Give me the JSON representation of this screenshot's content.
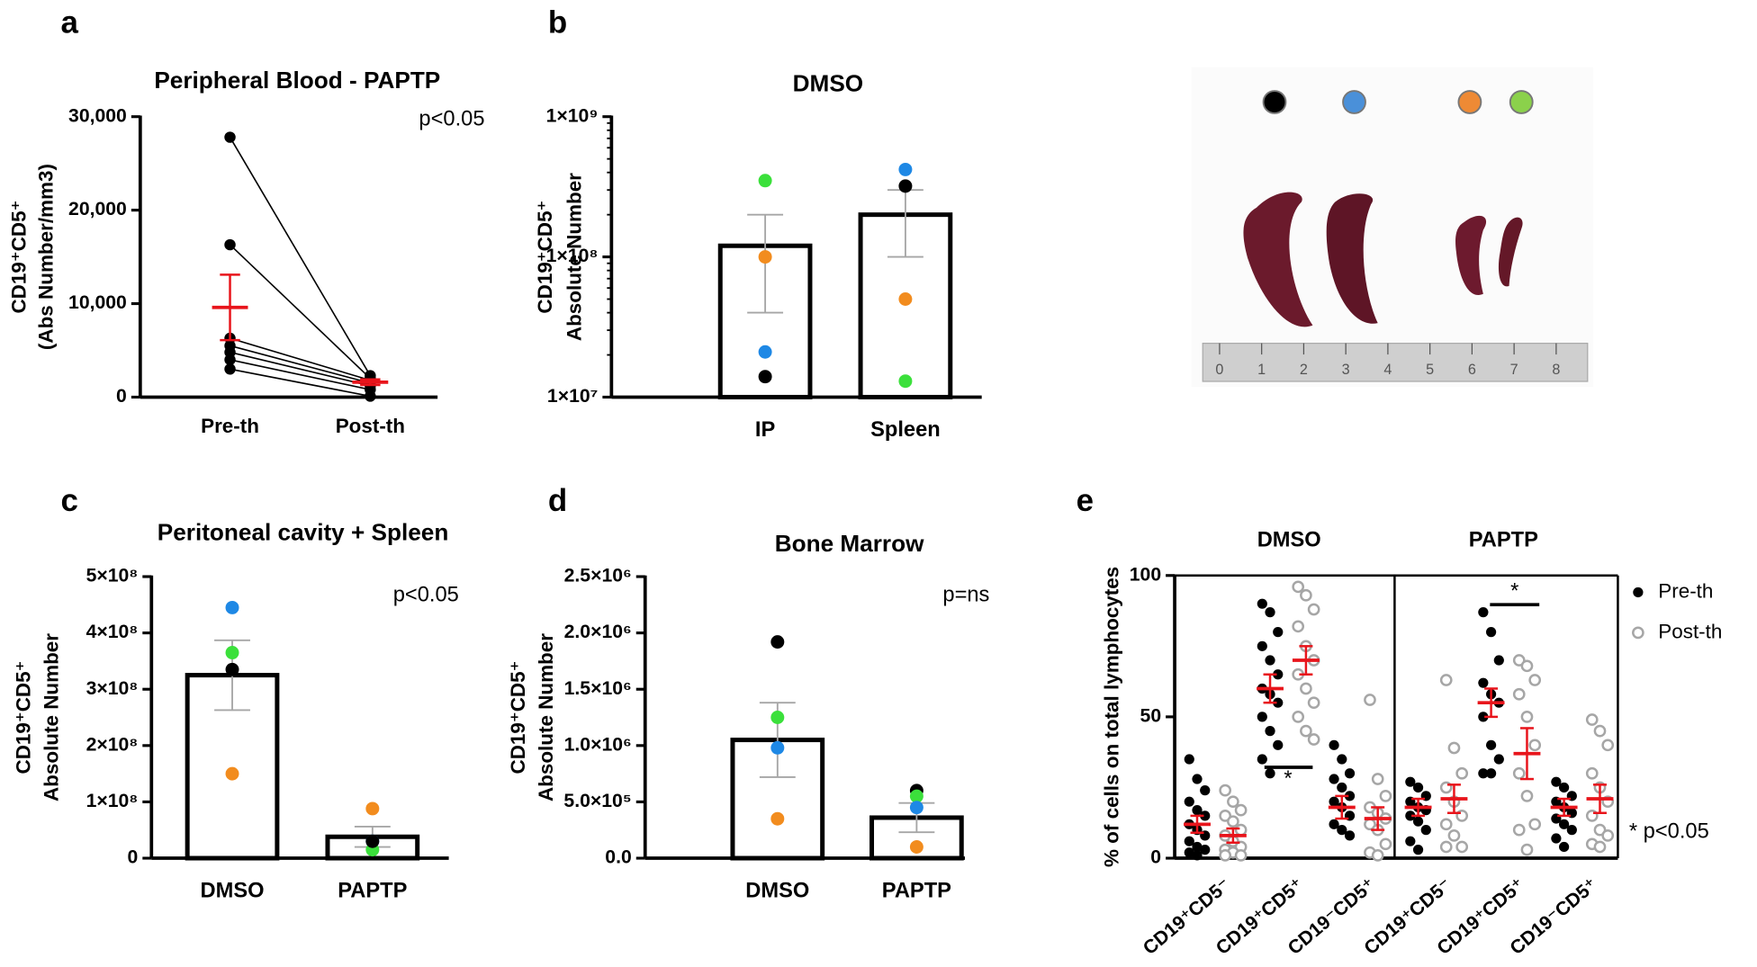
{
  "chart_data": [
    {
      "type": "paired",
      "letter": "a",
      "title": "Peripheral Blood - PAPTP",
      "ylabel": [
        "CD19⁺CD5⁺",
        "(Abs Number/mm3)"
      ],
      "categories": [
        "Pre-th",
        "Post-th"
      ],
      "pairs": [
        [
          27800,
          2300
        ],
        [
          16300,
          2000
        ],
        [
          6300,
          1800
        ],
        [
          5500,
          1500
        ],
        [
          4800,
          1200
        ],
        [
          4000,
          800
        ],
        [
          3000,
          100
        ]
      ],
      "color": "#000000",
      "means": [
        9600,
        1600
      ],
      "errors": [
        3500,
        300
      ],
      "mean_color": "#e8141b",
      "ylim": [
        0,
        30000
      ],
      "yticks": [
        0,
        {
          "value": 10000,
          "label": "10,000"
        },
        {
          "value": 20000,
          "label": "20,000"
        },
        {
          "value": 30000,
          "label": "30,000"
        }
      ],
      "annotations": [
        "p<0.05"
      ]
    },
    {
      "type": "bar",
      "letter": "b",
      "title": "DMSO",
      "ylabel": [
        "CD19⁺CD5⁺",
        "Absolute Number"
      ],
      "categories": [
        "IP",
        "Spleen"
      ],
      "values": [
        120000000,
        200000000
      ],
      "errors": [
        80000000,
        100000000
      ],
      "error_color": "#a6a6a6",
      "log": true,
      "points": [
        {
          "color": "#3be03b",
          "values": [
            350000000,
            13000000
          ]
        },
        {
          "color": "#f28c1e",
          "values": [
            100000000,
            50000000
          ]
        },
        {
          "color": "#1e88e5",
          "values": [
            21000000,
            420000000
          ]
        },
        {
          "color": "#000000",
          "values": [
            14000000,
            320000000
          ]
        }
      ],
      "ylim": [
        10000000,
        1000000000
      ],
      "yticks": [
        {
          "value": 10000000,
          "label": "1×10⁷"
        },
        {
          "value": 100000000,
          "label": "1×10⁸"
        },
        {
          "value": 1000000000,
          "label": "1×10⁹"
        }
      ],
      "annotations": []
    },
    {
      "type": "bar",
      "letter": "c",
      "title": "Peritoneal cavity + Spleen",
      "ylabel": [
        "CD19⁺CD5⁺",
        "Absolute Number"
      ],
      "categories": [
        "DMSO",
        "PAPTP"
      ],
      "values": [
        325000000,
        38000000
      ],
      "errors": [
        62000000,
        18000000
      ],
      "error_color": "#a6a6a6",
      "log": false,
      "points": [
        {
          "color": "#1e88e5",
          "values": [
            445000000,
            30000000
          ]
        },
        {
          "color": "#3be03b",
          "values": [
            365000000,
            15000000
          ]
        },
        {
          "color": "#000000",
          "values": [
            335000000,
            30000000
          ]
        },
        {
          "color": "#f28c1e",
          "values": [
            150000000,
            88000000
          ]
        }
      ],
      "point_colors_b": null,
      "ylim": [
        0,
        500000000
      ],
      "yticks": [
        0,
        {
          "value": 100000000,
          "label": "1×10⁸"
        },
        {
          "value": 200000000,
          "label": "2×10⁸"
        },
        {
          "value": 300000000,
          "label": "3×10⁸"
        },
        {
          "value": 400000000,
          "label": "4×10⁸"
        },
        {
          "value": 500000000,
          "label": "5×10⁸"
        }
      ],
      "annotations": [
        "p<0.05"
      ]
    },
    {
      "type": "bar",
      "letter": "d",
      "title": "Bone Marrow",
      "ylabel": [
        "CD19⁺CD5⁺",
        "Absolute Number"
      ],
      "categories": [
        "DMSO",
        "PAPTP"
      ],
      "values": [
        1050000,
        360000
      ],
      "errors": [
        330000,
        130000
      ],
      "error_color": "#a6a6a6",
      "log": false,
      "points": [
        {
          "color": "#000000",
          "values": [
            1920000,
            600000
          ]
        },
        {
          "color": "#3be03b",
          "values": [
            1250000,
            550000
          ]
        },
        {
          "color": "#1e88e5",
          "values": [
            980000,
            450000
          ]
        },
        {
          "color": "#f28c1e",
          "values": [
            350000,
            100000
          ]
        }
      ],
      "ylim": [
        0,
        2500000
      ],
      "yticks": [
        {
          "value": 0,
          "label": "0.0"
        },
        {
          "value": 500000,
          "label": "5.0×10⁵"
        },
        {
          "value": 1000000,
          "label": "1.0×10⁶"
        },
        {
          "value": 1500000,
          "label": "1.5×10⁶"
        },
        {
          "value": 2000000,
          "label": "2.0×10⁶"
        },
        {
          "value": 2500000,
          "label": "2.5×10⁶"
        }
      ],
      "annotations": [
        "p=ns"
      ]
    },
    {
      "type": "strip",
      "letter": "e",
      "title": null,
      "ylabel": [
        "% of cells on total lymphocytes"
      ],
      "groups": [
        "DMSO",
        "PAPTP"
      ],
      "categories": [
        "CD19⁺CD5⁻",
        "CD19⁺CD5⁺",
        "CD19⁻CD5⁺",
        "CD19⁺CD5⁻",
        "CD19⁺CD5⁺",
        "CD19⁻CD5⁺"
      ],
      "series": [
        {
          "name": "Pre-th",
          "color": "#000000",
          "filled": true,
          "values": [
            [
              35,
              28,
              24,
              20,
              17,
              15,
              12,
              10,
              8,
              6,
              4,
              3,
              2,
              1
            ],
            [
              90,
              87,
              80,
              75,
              70,
              65,
              60,
              58,
              55,
              50,
              45,
              40,
              35,
              30
            ],
            [
              40,
              35,
              30,
              28,
              25,
              22,
              20,
              18,
              15,
              12,
              10,
              8
            ],
            [
              27,
              25,
              22,
              20,
              18,
              17,
              15,
              13,
              10,
              6,
              3
            ],
            [
              87,
              80,
              70,
              62,
              58,
              55,
              50,
              40,
              35,
              30,
              30
            ],
            [
              27,
              25,
              22,
              20,
              18,
              16,
              14,
              12,
              10,
              7,
              4
            ]
          ],
          "means": [
            12,
            60,
            18,
            18,
            55,
            18
          ],
          "errors": [
            3,
            5,
            4,
            3,
            5,
            3
          ]
        },
        {
          "name": "Post-th",
          "color": "#a6a6a6",
          "filled": false,
          "values": [
            [
              24,
              20,
              17,
              15,
              13,
              10,
              8,
              6,
              4,
              3,
              2,
              1,
              1
            ],
            [
              96,
              93,
              88,
              82,
              75,
              70,
              65,
              60,
              55,
              50,
              45,
              42
            ],
            [
              56,
              28,
              22,
              18,
              16,
              14,
              12,
              10,
              5,
              2,
              1
            ],
            [
              63,
              39,
              30,
              25,
              20,
              15,
              12,
              8,
              4,
              4
            ],
            [
              70,
              68,
              63,
              58,
              50,
              40,
              30,
              22,
              12,
              10,
              3
            ],
            [
              49,
              45,
              40,
              30,
              25,
              20,
              15,
              10,
              8,
              5,
              4
            ]
          ],
          "means": [
            8,
            70,
            14,
            21,
            37,
            21
          ],
          "errors": [
            2.5,
            5,
            4,
            5,
            9,
            5
          ]
        }
      ],
      "mean_color": "#e8141b",
      "ylim": [
        0,
        100
      ],
      "yticks": [
        0,
        50,
        100
      ],
      "annotations": [
        "*",
        "*",
        "* p<0.05"
      ]
    }
  ],
  "photo": {
    "ruler_labels": [
      "0",
      "1",
      "2",
      "3",
      "4",
      "5",
      "6",
      "7",
      "8"
    ]
  }
}
